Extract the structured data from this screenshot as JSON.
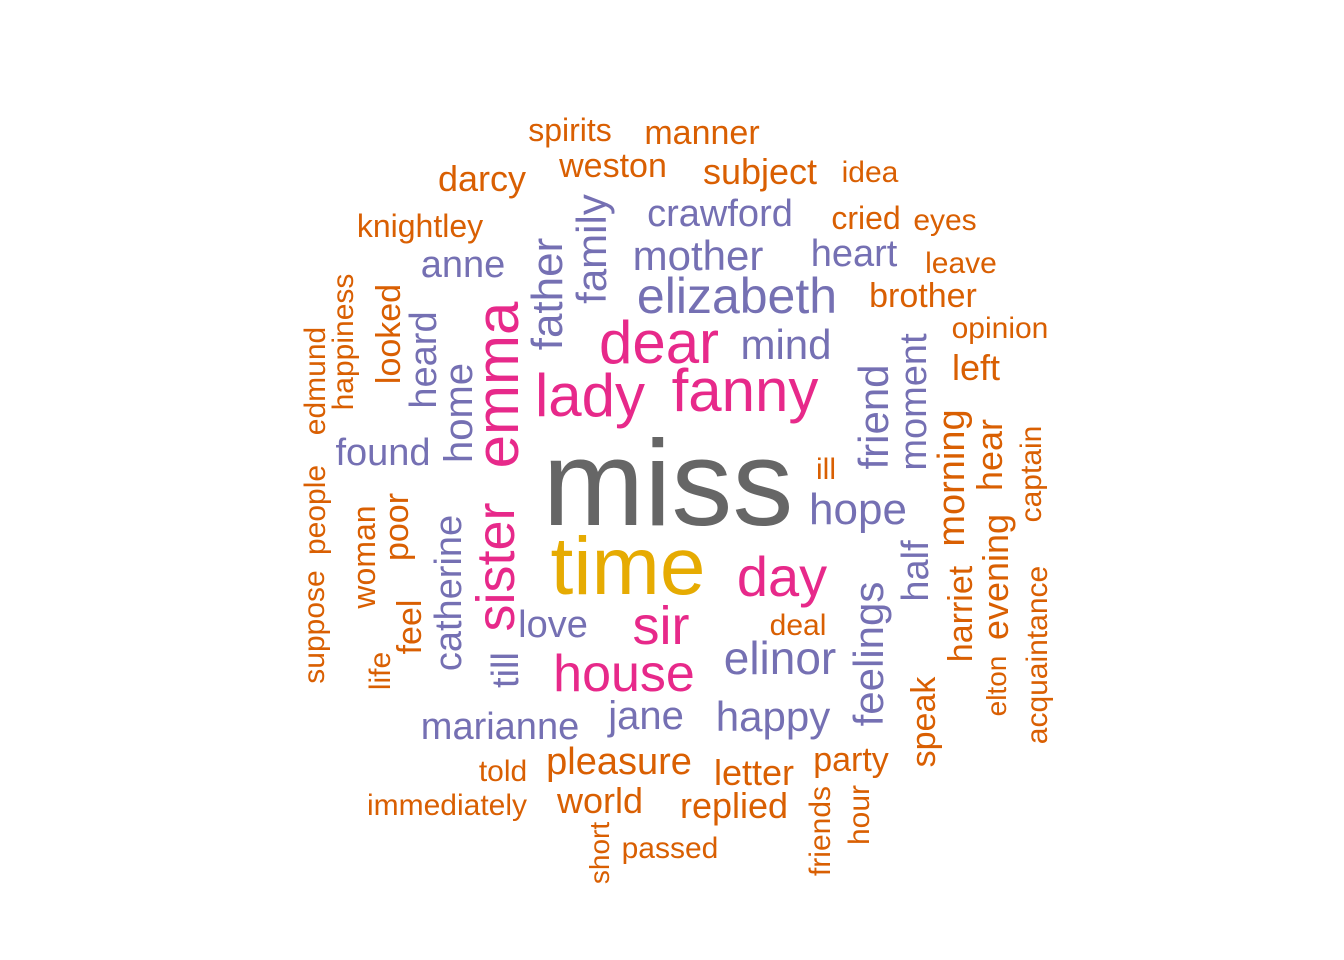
{
  "colors": {
    "gray": "#666666",
    "gold": "#E6AB02",
    "pink": "#E7298A",
    "purple": "#7570B3",
    "orange": "#D95F02"
  },
  "words": [
    {
      "text": "miss",
      "color": "gray",
      "weight": 1.0
    },
    {
      "text": "time",
      "color": "gold",
      "weight": 0.8
    },
    {
      "text": "fanny",
      "color": "pink",
      "weight": 0.55
    },
    {
      "text": "dear",
      "color": "pink",
      "weight": 0.5
    },
    {
      "text": "lady",
      "color": "pink",
      "weight": 0.5
    },
    {
      "text": "emma",
      "color": "pink",
      "weight": 0.5
    },
    {
      "text": "day",
      "color": "pink",
      "weight": 0.45
    },
    {
      "text": "sister",
      "color": "pink",
      "weight": 0.45
    },
    {
      "text": "sir",
      "color": "pink",
      "weight": 0.45
    },
    {
      "text": "house",
      "color": "pink",
      "weight": 0.45
    },
    {
      "text": "elizabeth",
      "color": "purple",
      "weight": 0.4
    },
    {
      "text": "elinor",
      "color": "purple",
      "weight": 0.38
    },
    {
      "text": "mother",
      "color": "purple",
      "weight": 0.33
    },
    {
      "text": "mind",
      "color": "purple",
      "weight": 0.33
    },
    {
      "text": "hope",
      "color": "purple",
      "weight": 0.33
    },
    {
      "text": "father",
      "color": "purple",
      "weight": 0.33
    },
    {
      "text": "family",
      "color": "purple",
      "weight": 0.33
    },
    {
      "text": "crawford",
      "color": "purple",
      "weight": 0.3
    },
    {
      "text": "heart",
      "color": "purple",
      "weight": 0.3
    },
    {
      "text": "anne",
      "color": "purple",
      "weight": 0.3
    },
    {
      "text": "found",
      "color": "purple",
      "weight": 0.3
    },
    {
      "text": "home",
      "color": "purple",
      "weight": 0.3
    },
    {
      "text": "heard",
      "color": "purple",
      "weight": 0.3
    },
    {
      "text": "friend",
      "color": "purple",
      "weight": 0.3
    },
    {
      "text": "moment",
      "color": "purple",
      "weight": 0.3
    },
    {
      "text": "catherine",
      "color": "purple",
      "weight": 0.3
    },
    {
      "text": "love",
      "color": "purple",
      "weight": 0.3
    },
    {
      "text": "till",
      "color": "purple",
      "weight": 0.3
    },
    {
      "text": "marianne",
      "color": "purple",
      "weight": 0.3
    },
    {
      "text": "jane",
      "color": "purple",
      "weight": 0.3
    },
    {
      "text": "happy",
      "color": "purple",
      "weight": 0.3
    },
    {
      "text": "feelings",
      "color": "purple",
      "weight": 0.3
    },
    {
      "text": "half",
      "color": "purple",
      "weight": 0.3
    },
    {
      "text": "spirits",
      "color": "orange",
      "weight": 0.2
    },
    {
      "text": "manner",
      "color": "orange",
      "weight": 0.22
    },
    {
      "text": "weston",
      "color": "orange",
      "weight": 0.22
    },
    {
      "text": "darcy",
      "color": "orange",
      "weight": 0.22
    },
    {
      "text": "subject",
      "color": "orange",
      "weight": 0.22
    },
    {
      "text": "idea",
      "color": "orange",
      "weight": 0.18
    },
    {
      "text": "knightley",
      "color": "orange",
      "weight": 0.2
    },
    {
      "text": "cried",
      "color": "orange",
      "weight": 0.2
    },
    {
      "text": "eyes",
      "color": "orange",
      "weight": 0.18
    },
    {
      "text": "leave",
      "color": "orange",
      "weight": 0.18
    },
    {
      "text": "brother",
      "color": "orange",
      "weight": 0.22
    },
    {
      "text": "opinion",
      "color": "orange",
      "weight": 0.18
    },
    {
      "text": "left",
      "color": "orange",
      "weight": 0.22
    },
    {
      "text": "happiness",
      "color": "orange",
      "weight": 0.2
    },
    {
      "text": "edmund",
      "color": "orange",
      "weight": 0.2
    },
    {
      "text": "looked",
      "color": "orange",
      "weight": 0.2
    },
    {
      "text": "ill",
      "color": "orange",
      "weight": 0.18
    },
    {
      "text": "morning",
      "color": "orange",
      "weight": 0.22
    },
    {
      "text": "hear",
      "color": "orange",
      "weight": 0.22
    },
    {
      "text": "captain",
      "color": "orange",
      "weight": 0.18
    },
    {
      "text": "people",
      "color": "orange",
      "weight": 0.18
    },
    {
      "text": "woman",
      "color": "orange",
      "weight": 0.2
    },
    {
      "text": "poor",
      "color": "orange",
      "weight": 0.22
    },
    {
      "text": "suppose",
      "color": "orange",
      "weight": 0.18
    },
    {
      "text": "evening",
      "color": "orange",
      "weight": 0.22
    },
    {
      "text": "harriet",
      "color": "orange",
      "weight": 0.2
    },
    {
      "text": "acquaintance",
      "color": "orange",
      "weight": 0.18
    },
    {
      "text": "feel",
      "color": "orange",
      "weight": 0.2
    },
    {
      "text": "life",
      "color": "orange",
      "weight": 0.18
    },
    {
      "text": "deal",
      "color": "orange",
      "weight": 0.18
    },
    {
      "text": "elton",
      "color": "orange",
      "weight": 0.16
    },
    {
      "text": "speak",
      "color": "orange",
      "weight": 0.2
    },
    {
      "text": "told",
      "color": "orange",
      "weight": 0.18
    },
    {
      "text": "pleasure",
      "color": "orange",
      "weight": 0.22
    },
    {
      "text": "letter",
      "color": "orange",
      "weight": 0.22
    },
    {
      "text": "party",
      "color": "orange",
      "weight": 0.2
    },
    {
      "text": "immediately",
      "color": "orange",
      "weight": 0.18
    },
    {
      "text": "world",
      "color": "orange",
      "weight": 0.22
    },
    {
      "text": "replied",
      "color": "orange",
      "weight": 0.22
    },
    {
      "text": "hour",
      "color": "orange",
      "weight": 0.18
    },
    {
      "text": "short",
      "color": "orange",
      "weight": 0.18
    },
    {
      "text": "passed",
      "color": "orange",
      "weight": 0.18
    },
    {
      "text": "friends",
      "color": "orange",
      "weight": 0.18
    }
  ]
}
